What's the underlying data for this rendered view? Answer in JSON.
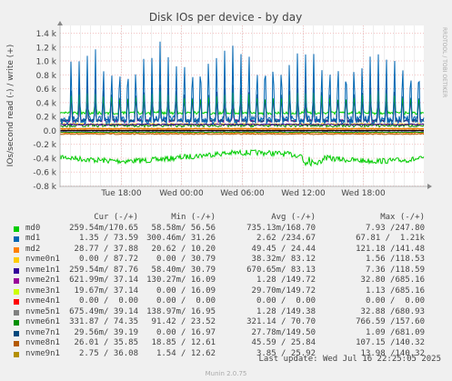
{
  "chart_data": {
    "type": "line",
    "title": "Disk IOs per device - by day",
    "ylabel": "IOs/second read (-) / write (+)",
    "watermark": "RRDTOOL / TOBI OETIKER",
    "ylim": [
      -800,
      1500
    ],
    "yticks": [
      "1.4 k",
      "1.2 k",
      "1.0 k",
      "0.8 k",
      "0.6 k",
      "0.4 k",
      "0.2 k",
      "0.0",
      "-0.2 k",
      "-0.4 k",
      "-0.6 k",
      "-0.8 k"
    ],
    "ytick_values": [
      1400,
      1200,
      1000,
      800,
      600,
      400,
      200,
      0,
      -200,
      -400,
      -600,
      -800
    ],
    "xticks": [
      "Tue 18:00",
      "Wed 00:00",
      "Wed 06:00",
      "Wed 12:00",
      "Wed 18:00"
    ],
    "xtick_hours": [
      6,
      12,
      18,
      24,
      30
    ],
    "x_range_hours": [
      0,
      36
    ],
    "series": [
      {
        "name": "md0",
        "color": "#00cc00",
        "read_level": 260,
        "write_level": -400
      },
      {
        "name": "md1",
        "color": "#0066b3",
        "read_level": 170,
        "write_level": 0
      },
      {
        "name": "md2",
        "color": "#ff8000",
        "read_level": 40,
        "write_level": -30
      },
      {
        "name": "nvme0n1",
        "color": "#ffcc00",
        "read_level": 88,
        "write_level": 0
      },
      {
        "name": "nvme1n1",
        "color": "#330099",
        "read_level": 88,
        "write_level": -80
      },
      {
        "name": "nvme2n1",
        "color": "#990099",
        "read_level": 37,
        "write_level": 0
      },
      {
        "name": "nvme3n1",
        "color": "#ccff00",
        "read_level": 37,
        "write_level": 0
      },
      {
        "name": "nvme4n1",
        "color": "#ff0000",
        "read_level": 0,
        "write_level": 0
      },
      {
        "name": "nvme5n1",
        "color": "#808080",
        "read_level": 39,
        "write_level": 0
      },
      {
        "name": "nvme6n1",
        "color": "#008f00",
        "read_level": 74,
        "write_level": -30
      },
      {
        "name": "nvme7n1",
        "color": "#00487d",
        "read_level": 39,
        "write_level": 0
      },
      {
        "name": "nvme8n1",
        "color": "#b35a00",
        "read_level": 36,
        "write_level": -40
      },
      {
        "name": "nvme9n1",
        "color": "#b38f00",
        "read_level": 36,
        "write_level": 0
      }
    ]
  },
  "legend": {
    "headers": {
      "cur": "Cur (-/+)",
      "min": "Min (-/+)",
      "avg": "Avg (-/+)",
      "max": "Max (-/+)"
    },
    "rows": [
      {
        "name": "md0",
        "color": "#00cc00",
        "cur": "259.54m/170.65",
        "min": "58.58m/ 56.56",
        "avg": "735.13m/168.70",
        "max": "7.93 /247.80"
      },
      {
        "name": "md1",
        "color": "#0066b3",
        "cur": "1.35 / 73.59",
        "min": "300.46m/ 31.26",
        "avg": "2.62 /234.67",
        "max": "67.81 /  1.21k"
      },
      {
        "name": "md2",
        "color": "#ff8000",
        "cur": "28.77 / 37.88",
        "min": "20.62 / 10.20",
        "avg": "49.45 / 24.44",
        "max": "121.18 /141.48"
      },
      {
        "name": "nvme0n1",
        "color": "#ffcc00",
        "cur": "0.00 / 87.72",
        "min": "0.00 / 30.79",
        "avg": "38.32m/ 83.12",
        "max": "1.56 /118.53"
      },
      {
        "name": "nvme1n1",
        "color": "#330099",
        "cur": "259.54m/ 87.76",
        "min": "58.40m/ 30.79",
        "avg": "670.65m/ 83.13",
        "max": "7.36 /118.59"
      },
      {
        "name": "nvme2n1",
        "color": "#990099",
        "cur": "621.99m/ 37.14",
        "min": "130.27m/ 16.09",
        "avg": "1.28 /149.72",
        "max": "32.80 /685.16"
      },
      {
        "name": "nvme3n1",
        "color": "#ccff00",
        "cur": "19.67m/ 37.14",
        "min": "0.00 / 16.09",
        "avg": "29.70m/149.72",
        "max": "1.13 /685.16"
      },
      {
        "name": "nvme4n1",
        "color": "#ff0000",
        "cur": "0.00 /  0.00",
        "min": "0.00 /  0.00",
        "avg": "0.00 /  0.00",
        "max": "0.00 /  0.00"
      },
      {
        "name": "nvme5n1",
        "color": "#808080",
        "cur": "675.49m/ 39.14",
        "min": "138.97m/ 16.95",
        "avg": "1.28 /149.38",
        "max": "32.88 /680.93"
      },
      {
        "name": "nvme6n1",
        "color": "#008f00",
        "cur": "331.87 / 74.35",
        "min": "91.42 / 23.52",
        "avg": "321.14 / 70.70",
        "max": "766.59 /157.60"
      },
      {
        "name": "nvme7n1",
        "color": "#00487d",
        "cur": "29.56m/ 39.19",
        "min": "0.00 / 16.97",
        "avg": "27.78m/149.50",
        "max": "1.09 /681.09"
      },
      {
        "name": "nvme8n1",
        "color": "#b35a00",
        "cur": "26.01 / 35.85",
        "min": "18.85 / 12.61",
        "avg": "45.59 / 25.84",
        "max": "107.15 /140.32"
      },
      {
        "name": "nvme9n1",
        "color": "#b38f00",
        "cur": "2.75 / 36.08",
        "min": "1.54 / 12.62",
        "avg": "3.85 / 25.92",
        "max": "13.98 /140.32"
      }
    ]
  },
  "last_update": "Last update: Wed Jul 16 22:25:05 2025",
  "footer": "Munin 2.0.75"
}
